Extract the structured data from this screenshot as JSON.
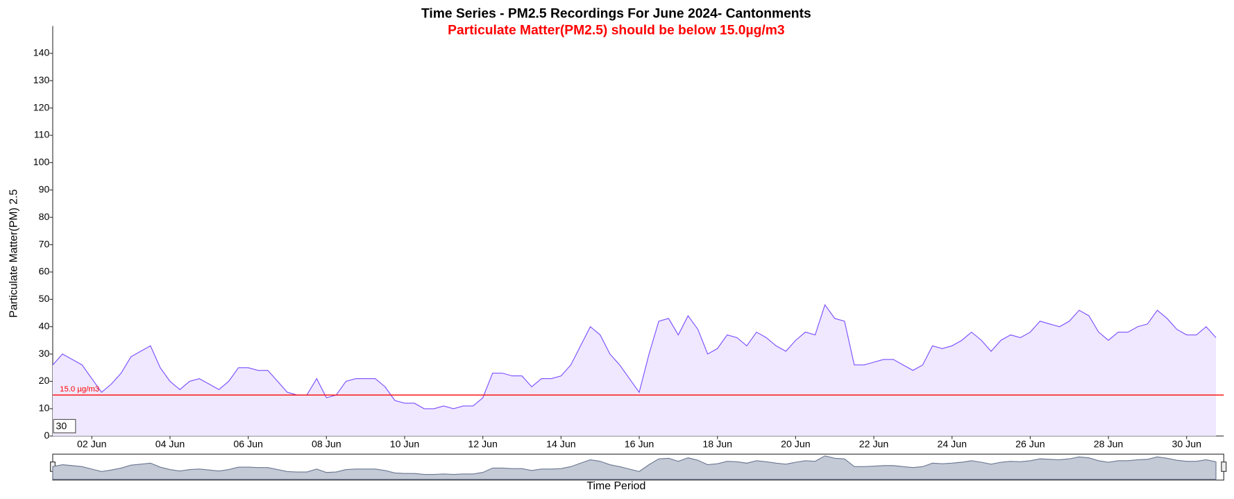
{
  "chart_data": {
    "type": "area",
    "title": "Time Series - PM2.5 Recordings For June 2024- Cantonments",
    "subtitle": "Particulate Matter(PM2.5) should be below 15.0µg/m3",
    "y_label": "Particulate Matter(PM) 2.5",
    "x_label": "Time Period",
    "zoom_input": "30",
    "threshold": {
      "value": 15,
      "label": "15.0 µg/m3",
      "color": "#ff0000"
    },
    "xlim": [
      1,
      30.95
    ],
    "xticks": [
      {
        "value": 2,
        "label": "02 Jun"
      },
      {
        "value": 4,
        "label": "04 Jun"
      },
      {
        "value": 6,
        "label": "06 Jun"
      },
      {
        "value": 8,
        "label": "08 Jun"
      },
      {
        "value": 10,
        "label": "10 Jun"
      },
      {
        "value": 12,
        "label": "12 Jun"
      },
      {
        "value": 14,
        "label": "14 Jun"
      },
      {
        "value": 16,
        "label": "16 Jun"
      },
      {
        "value": 18,
        "label": "18 Jun"
      },
      {
        "value": 20,
        "label": "20 Jun"
      },
      {
        "value": 22,
        "label": "22 Jun"
      },
      {
        "value": 24,
        "label": "24 Jun"
      },
      {
        "value": 26,
        "label": "26 Jun"
      },
      {
        "value": 28,
        "label": "28 Jun"
      },
      {
        "value": 30,
        "label": "30 Jun"
      }
    ],
    "ylim": [
      0,
      150
    ],
    "yticks": [
      0,
      10,
      20,
      30,
      40,
      50,
      60,
      70,
      80,
      90,
      100,
      110,
      120,
      130,
      140
    ],
    "color": "#7b4dff",
    "fill": "#efe8ff",
    "x": [
      1,
      1.25,
      1.5,
      1.75,
      2,
      2.25,
      2.5,
      2.75,
      3,
      3.25,
      3.5,
      3.75,
      4,
      4.25,
      4.5,
      4.75,
      5,
      5.25,
      5.5,
      5.75,
      6,
      6.25,
      6.5,
      6.75,
      7,
      7.25,
      7.5,
      7.75,
      8,
      8.25,
      8.5,
      8.75,
      9,
      9.25,
      9.5,
      9.75,
      10,
      10.25,
      10.5,
      10.75,
      11,
      11.25,
      11.5,
      11.75,
      12,
      12.25,
      12.5,
      12.75,
      13,
      13.25,
      13.5,
      13.75,
      14,
      14.25,
      14.5,
      14.75,
      15,
      15.25,
      15.5,
      15.75,
      16,
      16.25,
      16.5,
      16.75,
      17,
      17.25,
      17.5,
      17.75,
      18,
      18.25,
      18.5,
      18.75,
      19,
      19.25,
      19.5,
      19.75,
      20,
      20.25,
      20.5,
      20.75,
      21,
      21.25,
      21.5,
      21.75,
      22,
      22.25,
      22.5,
      22.75,
      23,
      23.25,
      23.5,
      23.75,
      24,
      24.25,
      24.5,
      24.75,
      25,
      25.25,
      25.5,
      25.75,
      26,
      26.25,
      26.5,
      26.75,
      27,
      27.25,
      27.5,
      27.75,
      28,
      28.25,
      28.5,
      28.75,
      29,
      29.25,
      29.5,
      29.75,
      30,
      30.25,
      30.5,
      30.75
    ],
    "values": [
      26,
      30,
      28,
      26,
      21,
      16,
      19,
      23,
      29,
      31,
      33,
      25,
      20,
      17,
      20,
      21,
      19,
      17,
      20,
      25,
      25,
      24,
      24,
      20,
      16,
      15,
      15,
      21,
      14,
      15,
      20,
      21,
      21,
      21,
      18,
      13,
      12,
      12,
      10,
      10,
      11,
      10,
      11,
      11,
      14,
      23,
      23,
      22,
      22,
      18,
      21,
      21,
      22,
      26,
      33,
      40,
      37,
      30,
      26,
      21,
      16,
      30,
      42,
      43,
      37,
      44,
      39,
      30,
      32,
      37,
      36,
      33,
      38,
      36,
      33,
      31,
      35,
      38,
      37,
      48,
      43,
      42,
      26,
      26,
      27,
      28,
      28,
      26,
      24,
      26,
      33,
      32,
      33,
      35,
      38,
      35,
      31,
      35,
      37,
      36,
      38,
      42,
      41,
      40,
      42,
      46,
      44,
      38,
      35,
      38,
      38,
      40,
      41,
      46,
      43,
      39,
      37,
      37,
      40,
      36
    ]
  }
}
